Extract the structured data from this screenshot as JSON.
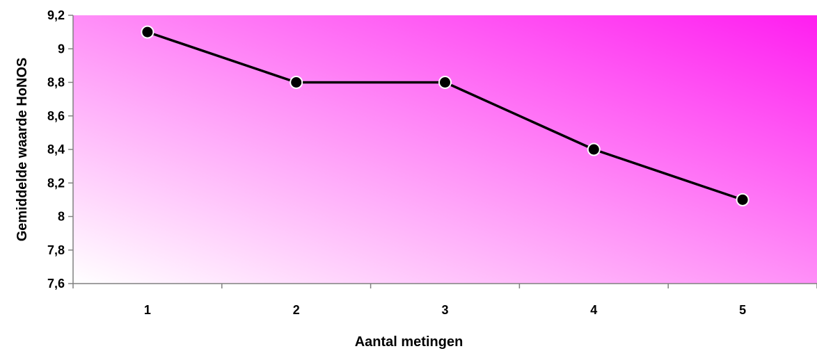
{
  "chart_data": {
    "type": "line",
    "title": "",
    "xlabel": "Aantal metingen",
    "ylabel": "Gemiddelde waarde HoNOS",
    "categories": [
      "1",
      "2",
      "3",
      "4",
      "5"
    ],
    "series": [
      {
        "values": [
          9.1,
          8.8,
          8.8,
          8.4,
          8.1
        ]
      }
    ],
    "ylim": [
      7.6,
      9.2
    ],
    "yticks": [
      7.6,
      7.8,
      8.0,
      8.2,
      8.4,
      8.6,
      8.8,
      9.0,
      9.2
    ],
    "ytick_labels": [
      "7,6",
      "7,8",
      "8",
      "8,2",
      "8,4",
      "8,6",
      "8,8",
      "9",
      "9,2"
    ],
    "grid": false,
    "legend": "none",
    "colors": {
      "plot_gradient_light": "#ffffff",
      "plot_gradient_dark": "#ff1ef0",
      "line": "#000000",
      "marker_fill": "#000000",
      "marker_stroke": "#ffffff",
      "axis": "#808080"
    }
  }
}
